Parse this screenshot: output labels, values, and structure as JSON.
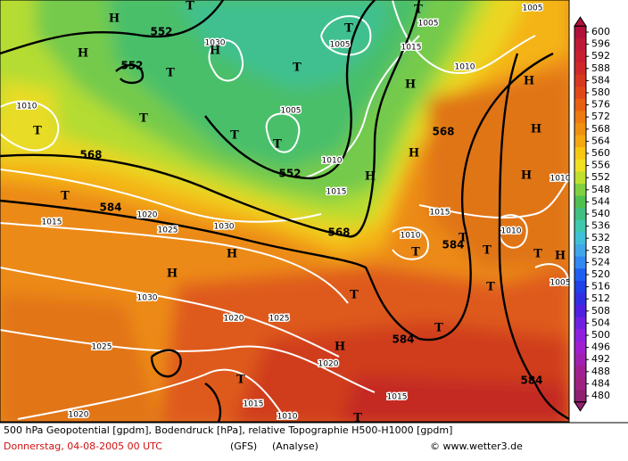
{
  "map": {
    "contour_labels": [
      "552",
      "552",
      "552",
      "568",
      "568",
      "568",
      "584",
      "584",
      "584",
      "584"
    ],
    "pressure_labels": [
      "1030",
      "1005",
      "1005",
      "1005",
      "1015",
      "1010",
      "1010",
      "1005",
      "1010",
      "1015",
      "1010",
      "1015",
      "1020",
      "1025",
      "1030",
      "1015",
      "1010",
      "1010",
      "1005",
      "1030",
      "1020",
      "1025",
      "1025",
      "1020",
      "1015",
      "1015",
      "1010",
      "1020"
    ],
    "highs": [
      "H",
      "H",
      "H",
      "H",
      "H",
      "H",
      "H",
      "H",
      "H",
      "H",
      "H",
      "H",
      "H"
    ],
    "lows": [
      "T",
      "T",
      "T",
      "T",
      "T",
      "T",
      "T",
      "T",
      "T",
      "T",
      "T",
      "T",
      "T",
      "T",
      "T",
      "T",
      "T",
      "T",
      "T"
    ]
  },
  "colorbar": {
    "labels": [
      600,
      596,
      592,
      588,
      584,
      580,
      576,
      572,
      568,
      564,
      560,
      556,
      552,
      548,
      544,
      540,
      536,
      532,
      528,
      524,
      520,
      516,
      512,
      508,
      504,
      500,
      496,
      492,
      488,
      484,
      480
    ],
    "colors": [
      "#b0103a",
      "#c01838",
      "#c82030",
      "#d02828",
      "#d83820",
      "#e04818",
      "#e86010",
      "#ee7a10",
      "#f09010",
      "#f4a810",
      "#f8c810",
      "#f0e020",
      "#c0e030",
      "#80d040",
      "#50c050",
      "#40c080",
      "#40c8b0",
      "#40c0d8",
      "#40a8e8",
      "#3088f0",
      "#2060f0",
      "#2040e8",
      "#3030e0",
      "#5020e0",
      "#7020e0",
      "#9020e0",
      "#a020d0",
      "#a020b0",
      "#a02090",
      "#a02080",
      "#902070"
    ]
  },
  "footer": {
    "description": "500 hPa Geopotential [gpdm], Bodendruck [hPa], relative Topographie H500-H1000 [gpdm]",
    "date": "Donnerstag, 04-08-2005  00 UTC",
    "model": "(GFS)",
    "analysis": "(Analyse)",
    "copyright": "© www.wetter3.de"
  }
}
